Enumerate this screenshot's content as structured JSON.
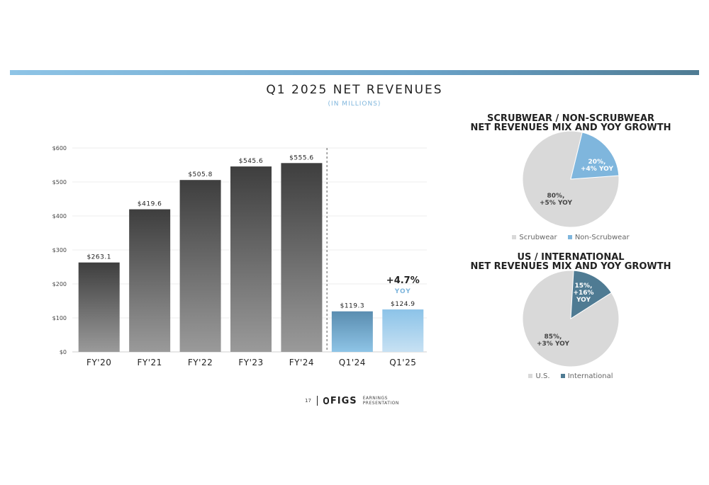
{
  "header": {
    "title": "Q1 2025 NET REVENUES",
    "subtitle": "(IN MILLIONS)"
  },
  "colors": {
    "rule_start": "#8ec4e6",
    "rule_end": "#4f7b93",
    "bar_fy_top": "#3e3e3e",
    "bar_fy_bottom": "#9a9a9a",
    "bar_q124_top": "#5a8db0",
    "bar_q124_bottom": "#8ec4e6",
    "bar_q125_top": "#8cc3e8",
    "bar_q125_bottom": "#c7e1f3",
    "pie_light": "#d9d9d9",
    "pie_blue": "#7fb6dd",
    "pie_steel": "#4f7b93"
  },
  "chart_data": [
    {
      "type": "bar",
      "categories": [
        "FY'20",
        "FY'21",
        "FY'22",
        "FY'23",
        "FY'24",
        "Q1'24",
        "Q1'25"
      ],
      "values": [
        263.1,
        419.6,
        505.8,
        545.6,
        555.6,
        119.3,
        124.9
      ],
      "value_labels": [
        "$263.1",
        "$419.6",
        "$505.8",
        "$545.6",
        "$555.6",
        "$119.3",
        "$124.9"
      ],
      "yticks": [
        "$0",
        "$100",
        "$200",
        "$300",
        "$400",
        "$500",
        "$600"
      ],
      "ylim": [
        0,
        600
      ],
      "grid": true,
      "annotation": {
        "value": "+4.7%",
        "label": "YOY"
      }
    },
    {
      "type": "pie",
      "title_lines": [
        "SCRUBWEAR / NON-SCRUBWEAR",
        "NET REVENUES MIX AND YOY GROWTH"
      ],
      "slices": [
        {
          "name": "Scrubwear",
          "value": 80,
          "label_lines": [
            "80%,",
            "+5% YOY"
          ]
        },
        {
          "name": "Non-Scrubwear",
          "value": 20,
          "label_lines": [
            "20%,",
            "+4% YOY"
          ]
        }
      ],
      "legend": [
        "Scrubwear",
        "Non-Scrubwear"
      ]
    },
    {
      "type": "pie",
      "title_lines": [
        "US / INTERNATIONAL",
        "NET REVENUES MIX AND YOY GROWTH"
      ],
      "slices": [
        {
          "name": "U.S.",
          "value": 85,
          "label_lines": [
            "85%,",
            "+3% YOY"
          ]
        },
        {
          "name": "International",
          "value": 15,
          "label_lines": [
            "15%,",
            "+16%",
            "YOY"
          ]
        }
      ],
      "legend": [
        "U.S.",
        "International"
      ]
    }
  ],
  "footer": {
    "page_number": "17",
    "logo_text": "FIGS",
    "caption_lines": [
      "EARNINGS",
      "PRESENTATION"
    ]
  }
}
